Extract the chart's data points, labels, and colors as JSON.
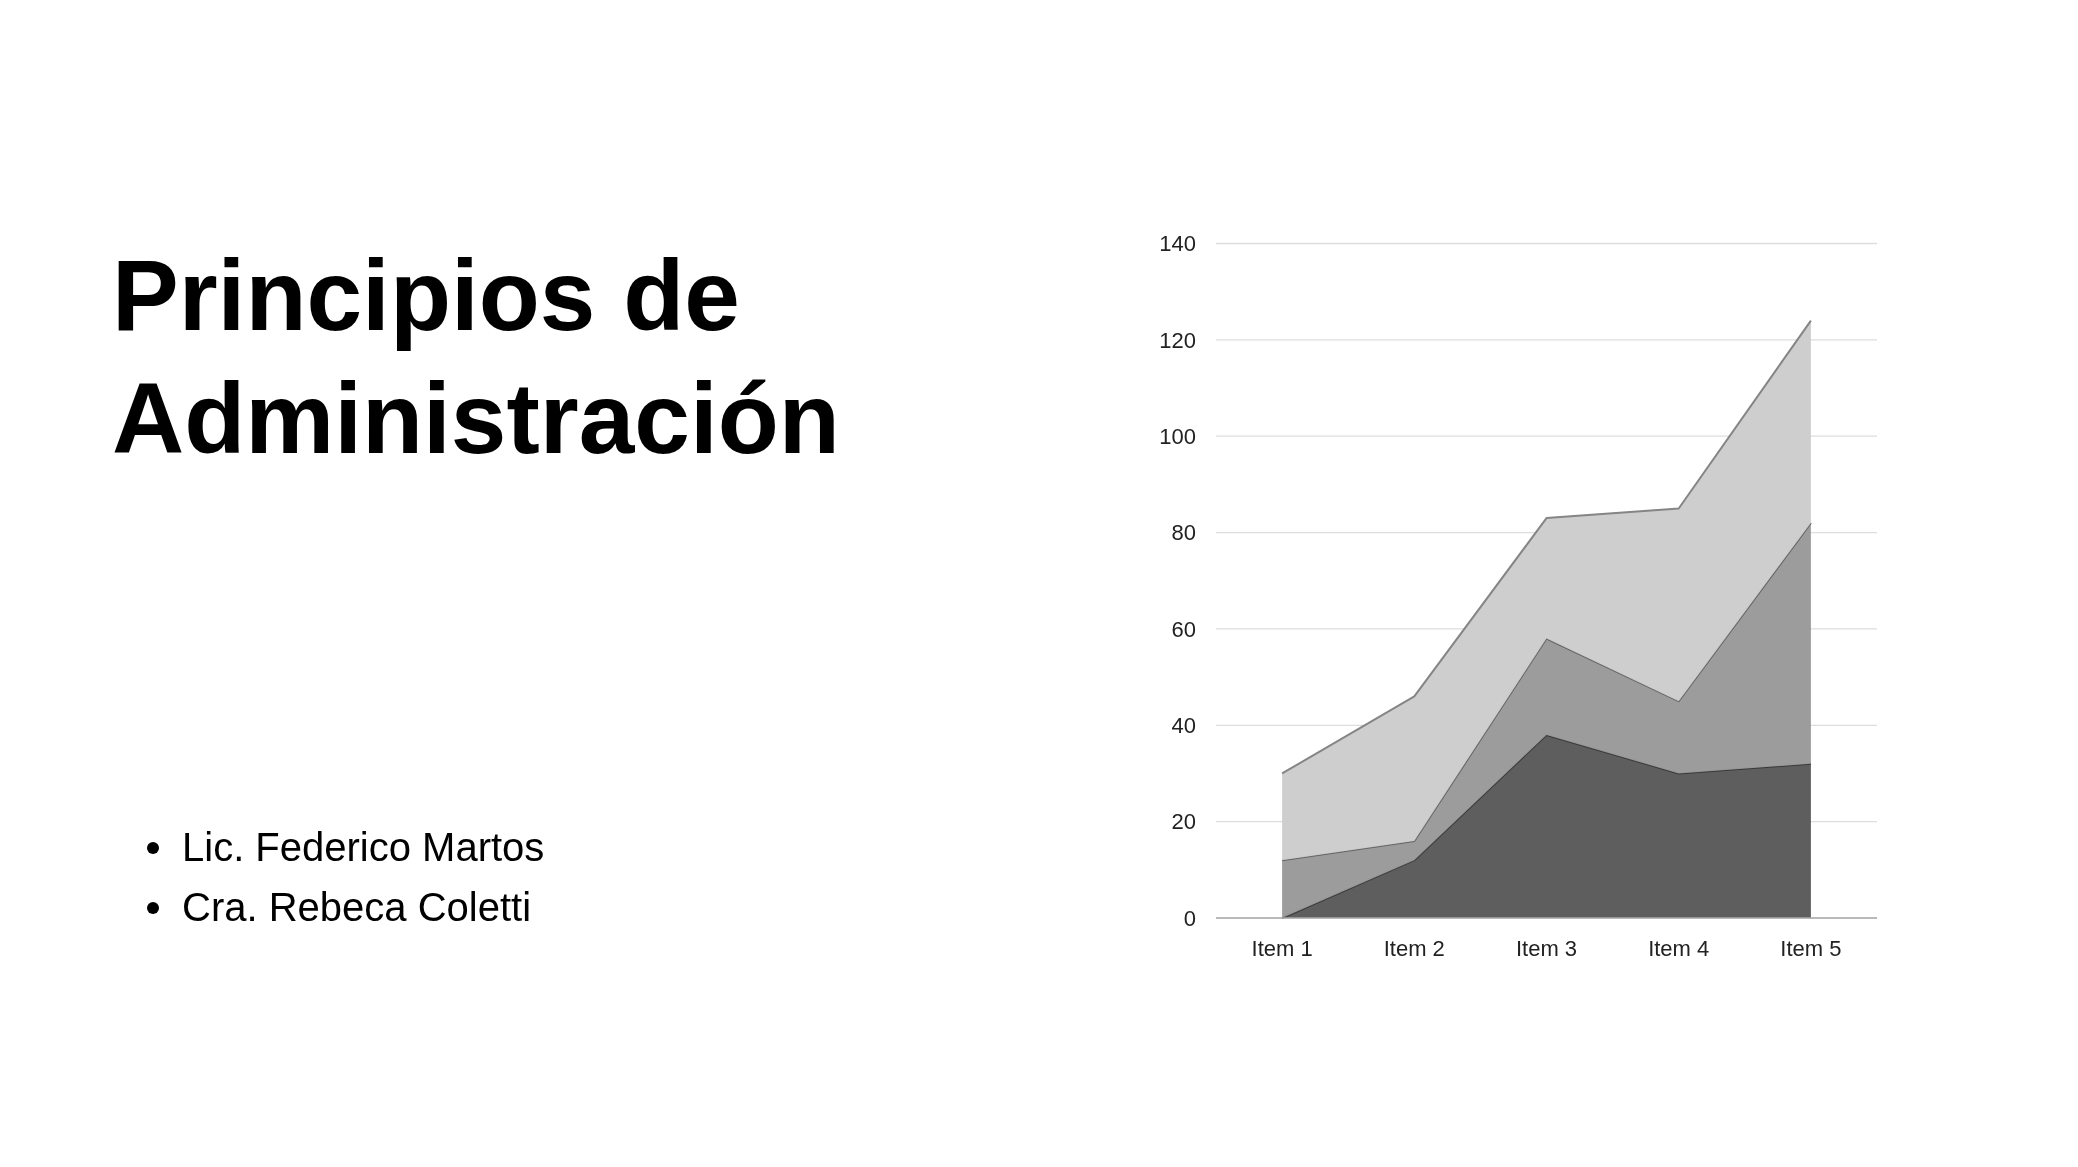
{
  "chart_data": {
    "type": "area",
    "title": "Principios de Administración",
    "annotations": [
      "Lic. Federico Martos",
      "Cra. Rebeca Coletti"
    ],
    "categories": [
      "Item 1",
      "Item 2",
      "Item 3",
      "Item 4",
      "Item 5"
    ],
    "stacked": true,
    "series": [
      {
        "color": "#595959",
        "values": [
          0,
          12,
          38,
          30,
          32
        ]
      },
      {
        "color": "#999999",
        "values": [
          12,
          4,
          20,
          15,
          50
        ]
      },
      {
        "color": "#cccccc",
        "values": [
          18,
          30,
          25,
          40,
          42
        ]
      }
    ],
    "ylim": [
      0,
      140
    ],
    "yticks": [
      0,
      20,
      40,
      60,
      80,
      100,
      120,
      140
    ],
    "grid": "y"
  }
}
